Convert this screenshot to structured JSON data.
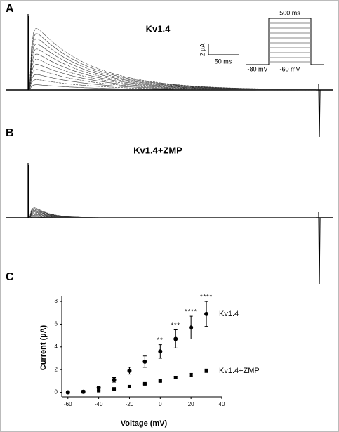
{
  "panels": [
    {
      "label": "A",
      "title": "Kv1.4",
      "scale_bar": {
        "y": "2 µA",
        "x": "50 ms"
      },
      "protocol": {
        "duration": "500 ms",
        "holding": "-80 mV",
        "step": "-60 mV"
      }
    },
    {
      "label": "B",
      "title": "Kv1.4+ZMP"
    }
  ],
  "chart_data": {
    "type": "scatter",
    "panel_label": "C",
    "x_label": "Voltage (mV)",
    "y_label": "Current (µA)",
    "x": [
      -60,
      -50,
      -40,
      -30,
      -20,
      -10,
      0,
      10,
      20,
      30
    ],
    "series": [
      {
        "name": "Kv1.4",
        "color": "#000000",
        "marker": "circle",
        "values": [
          0,
          0.05,
          0.4,
          1.1,
          1.9,
          2.7,
          3.6,
          4.7,
          5.7,
          6.9
        ],
        "errors": [
          0.05,
          0.05,
          0.1,
          0.2,
          0.3,
          0.5,
          0.6,
          0.8,
          1.0,
          1.1
        ],
        "significance": [
          null,
          null,
          null,
          null,
          null,
          null,
          "**",
          "***",
          "****",
          "****"
        ]
      },
      {
        "name": "Kv1.4+ZMP",
        "color": "#000000",
        "marker": "square",
        "values": [
          0,
          0.05,
          0.15,
          0.3,
          0.5,
          0.75,
          1.0,
          1.3,
          1.55,
          1.9
        ],
        "errors": [
          0.03,
          0.03,
          0.04,
          0.05,
          0.05,
          0.06,
          0.08,
          0.1,
          0.12,
          0.15
        ],
        "significance": [
          null,
          null,
          null,
          null,
          null,
          null,
          null,
          null,
          null,
          null
        ]
      }
    ],
    "xlim": [
      -64,
      40
    ],
    "xticks": [
      -60,
      -40,
      -20,
      0,
      20,
      40
    ],
    "ylim": [
      -0.4,
      8.5
    ],
    "yticks": [
      0,
      2,
      4,
      6,
      8
    ]
  }
}
